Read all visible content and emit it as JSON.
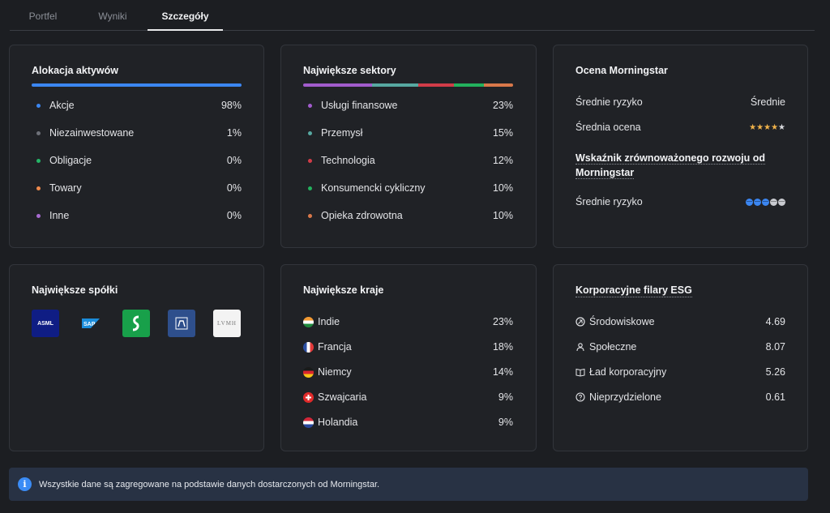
{
  "tabs": [
    "Portfel",
    "Wyniki",
    "Szczegóły"
  ],
  "allocation": {
    "title": "Alokacja aktywów",
    "items": [
      {
        "label": "Akcje",
        "value": "98%",
        "color": "#3b86f1"
      },
      {
        "label": "Niezainwestowane",
        "value": "1%",
        "color": "#6d7078"
      },
      {
        "label": "Obligacje",
        "value": "0%",
        "color": "#25b567"
      },
      {
        "label": "Towary",
        "value": "0%",
        "color": "#ef8a4c"
      },
      {
        "label": "Inne",
        "value": "0%",
        "color": "#a76ad0"
      }
    ]
  },
  "sectors": {
    "title": "Największe sektory",
    "items": [
      {
        "label": "Usługi finansowe",
        "value": "23%",
        "color": "#a25ccd"
      },
      {
        "label": "Przemysł",
        "value": "15%",
        "color": "#57a8a1"
      },
      {
        "label": "Technologia",
        "value": "12%",
        "color": "#d13c48"
      },
      {
        "label": "Konsumencki cykliczny",
        "value": "10%",
        "color": "#23b15d"
      },
      {
        "label": "Opieka zdrowotna",
        "value": "10%",
        "color": "#d9784a"
      }
    ]
  },
  "morningstar": {
    "title": "Ocena Morningstar",
    "risk_label": "Średnie ryzyko",
    "risk_value": "Średnie",
    "rating_label": "Średnia ocena",
    "rating_stars": 4,
    "rating_max": 5,
    "sustain_title": "Wskaźnik zrównoważonego rozwoju od Morningstar",
    "sustain_label": "Średnie ryzyko",
    "globes": 3,
    "globes_max": 5
  },
  "companies": {
    "title": "Największe spółki",
    "logos": [
      {
        "name": "ASML",
        "bg": "#0f1d84",
        "fg": "#ffffff"
      },
      {
        "name": "SAP",
        "bg": "#202226",
        "fg": "#ffffff"
      },
      {
        "name": "Schneider",
        "bg": "#18a04a",
        "fg": "#ffffff"
      },
      {
        "name": "Novo",
        "bg": "#2e4f8c",
        "fg": "#ffffff"
      },
      {
        "name": "LVMH",
        "bg": "#f3f3f3",
        "fg": "#7a7a7a"
      }
    ]
  },
  "countries": {
    "title": "Największe kraje",
    "items": [
      {
        "label": "Indie",
        "value": "23%"
      },
      {
        "label": "Francja",
        "value": "18%"
      },
      {
        "label": "Niemcy",
        "value": "14%"
      },
      {
        "label": "Szwajcaria",
        "value": "9%"
      },
      {
        "label": "Holandia",
        "value": "9%"
      }
    ]
  },
  "esg": {
    "title": "Korporacyjne filary ESG",
    "items": [
      {
        "label": "Środowiskowe",
        "value": "4.69"
      },
      {
        "label": "Społeczne",
        "value": "8.07"
      },
      {
        "label": "Ład korporacyjny",
        "value": "5.26"
      },
      {
        "label": "Nieprzydzielone",
        "value": "0.61"
      }
    ]
  },
  "info": {
    "text": "Wszystkie dane są zagregowane na podstawie danych dostarczonych od Morningstar."
  }
}
